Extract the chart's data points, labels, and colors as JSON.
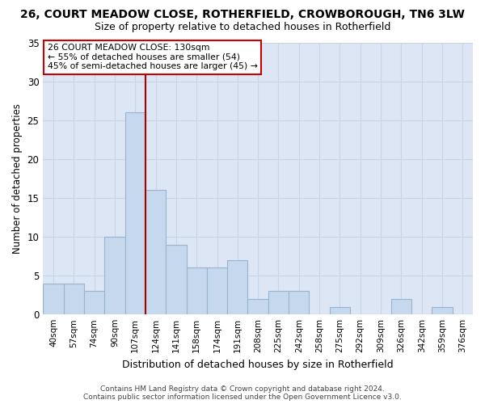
{
  "title1": "26, COURT MEADOW CLOSE, ROTHERFIELD, CROWBOROUGH, TN6 3LW",
  "title2": "Size of property relative to detached houses in Rotherfield",
  "xlabel": "Distribution of detached houses by size in Rotherfield",
  "ylabel": "Number of detached properties",
  "categories": [
    "40sqm",
    "57sqm",
    "74sqm",
    "90sqm",
    "107sqm",
    "124sqm",
    "141sqm",
    "158sqm",
    "174sqm",
    "191sqm",
    "208sqm",
    "225sqm",
    "242sqm",
    "258sqm",
    "275sqm",
    "292sqm",
    "309sqm",
    "326sqm",
    "342sqm",
    "359sqm",
    "376sqm"
  ],
  "values": [
    4,
    4,
    3,
    10,
    26,
    16,
    9,
    6,
    6,
    7,
    2,
    3,
    3,
    0,
    1,
    0,
    0,
    2,
    0,
    1,
    0
  ],
  "bar_color": "#c5d8ed",
  "bar_edge_color": "#9ab4d0",
  "vline_color": "#aa0000",
  "annotation_title": "26 COURT MEADOW CLOSE: 130sqm",
  "annotation_line1": "← 55% of detached houses are smaller (54)",
  "annotation_line2": "45% of semi-detached houses are larger (45) →",
  "annotation_box_color": "#ffffff",
  "annotation_box_edge": "#cc0000",
  "ylim": [
    0,
    35
  ],
  "yticks": [
    0,
    5,
    10,
    15,
    20,
    25,
    30,
    35
  ],
  "grid_color": "#c8d4e8",
  "background_color": "#dce6f5",
  "footer1": "Contains HM Land Registry data © Crown copyright and database right 2024.",
  "footer2": "Contains public sector information licensed under the Open Government Licence v3.0."
}
